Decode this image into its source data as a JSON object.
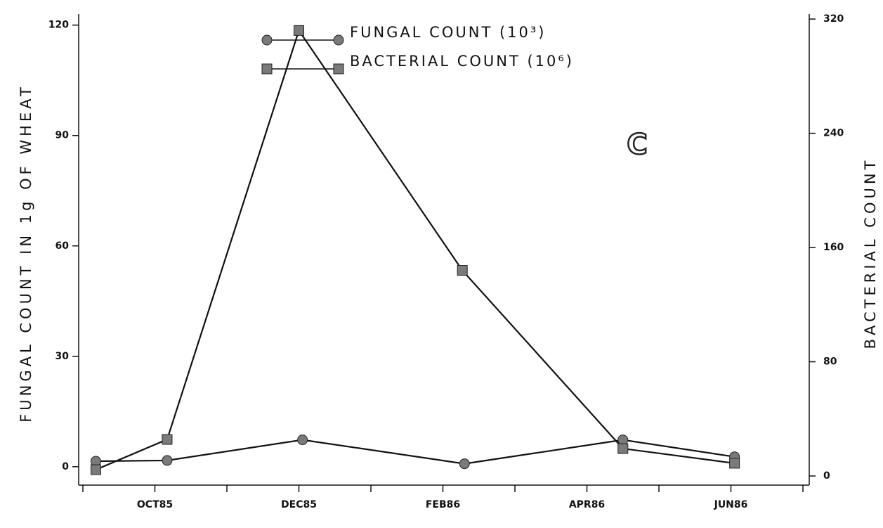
{
  "chart_data": {
    "type": "line",
    "y_label": "FUNGAL COUNT IN 1g OF WHEAT",
    "y2_label": "BACTERIAL COUNT",
    "annotation": "C",
    "xlim": [
      0,
      10
    ],
    "xticks": [
      {
        "value": 1,
        "label": "OCT85"
      },
      {
        "value": 3,
        "label": "DEC85"
      },
      {
        "value": 5,
        "label": "FEB86"
      },
      {
        "value": 7,
        "label": "APR86"
      },
      {
        "value": 9,
        "label": "JUN86"
      }
    ],
    "xminor_ticks": [
      0,
      2,
      4,
      6,
      8,
      10
    ],
    "ylim": [
      -5,
      123
    ],
    "yticks": [
      0,
      30,
      60,
      90,
      120
    ],
    "y2lim": [
      -6.4,
      323.5
    ],
    "y2ticks": [
      0,
      80,
      160,
      240,
      320
    ],
    "legend": "top",
    "series": [
      {
        "name": "FUNGAL COUNT (10³)",
        "marker": "circle",
        "color": "#7a7a7a",
        "axis": "y",
        "x": [
          0.18,
          1.17,
          3.05,
          5.3,
          7.5,
          9.05
        ],
        "values": [
          1.5,
          1.7,
          7.3,
          0.8,
          7.3,
          2.7
        ]
      },
      {
        "name": "BACTERIAL COUNT (10⁶)",
        "marker": "square",
        "color": "#7a7a7a",
        "axis": "y2",
        "x": [
          0.18,
          1.17,
          3.0,
          5.27,
          7.5,
          9.05
        ],
        "values": [
          4.4,
          25.6,
          312,
          144,
          19.2,
          8.9
        ]
      }
    ]
  }
}
